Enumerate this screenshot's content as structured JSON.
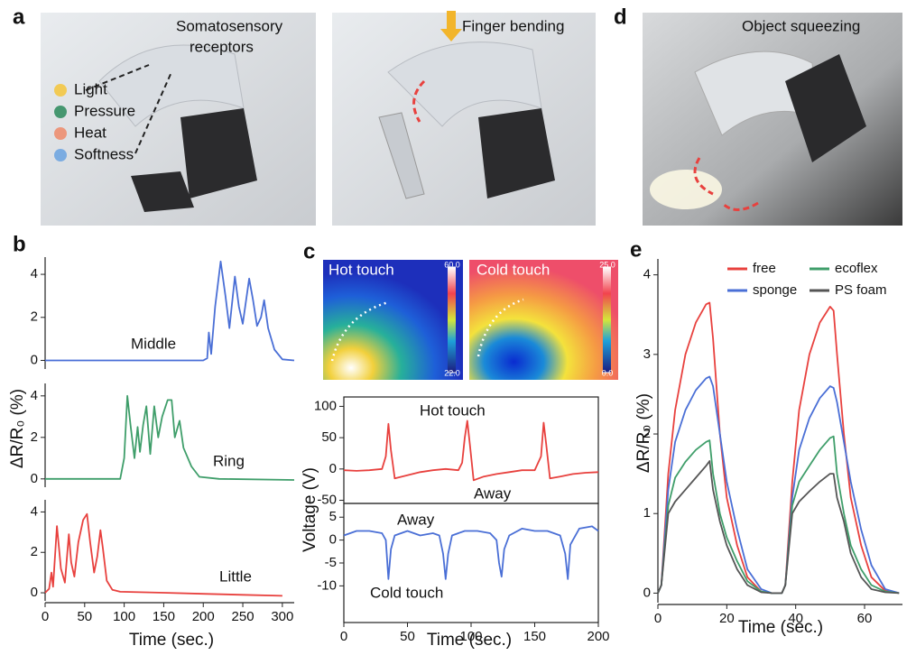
{
  "panel_labels": [
    "a",
    "b",
    "c",
    "d",
    "e"
  ],
  "photos": {
    "receptor_title": [
      "Somatosensory",
      "receptors"
    ],
    "receptors": [
      "Light",
      "Pressure",
      "Heat",
      "Softness"
    ],
    "finger_bending": "Finger bending",
    "object_squeezing": "Object squeezing"
  },
  "thermal": [
    {
      "label": "Hot touch",
      "scale": [
        {
          "value": 22,
          "label": "22.0"
        },
        {
          "value": 60,
          "label": "60.0"
        }
      ]
    },
    {
      "label": "Cold touch",
      "scale": [
        {
          "value": 0,
          "label": "0.0"
        },
        {
          "value": 25,
          "label": "25.0"
        }
      ]
    }
  ],
  "chart_data": [
    {
      "type": "line",
      "annotations": [
        "Middle"
      ],
      "xlim": [
        0,
        315
      ],
      "ylim": [
        -0.4,
        4.8
      ],
      "yticks": [
        0,
        2,
        4
      ],
      "x": [
        0,
        50,
        100,
        150,
        200,
        205,
        207,
        210,
        215,
        222,
        228,
        233,
        240,
        245,
        250,
        258,
        263,
        268,
        273,
        277,
        282,
        290,
        300,
        315
      ],
      "series": [
        {
          "color": "#4a6fd6",
          "values": [
            0,
            0,
            0,
            0,
            0,
            0.1,
            1.3,
            0.3,
            2.5,
            4.6,
            3.0,
            1.5,
            3.9,
            2.5,
            1.7,
            3.8,
            2.8,
            1.6,
            2.0,
            2.8,
            1.5,
            0.5,
            0.05,
            0
          ]
        }
      ]
    },
    {
      "type": "line",
      "annotations": [
        "Ring"
      ],
      "y_label": "ΔR/R₀ (%)",
      "xlim": [
        0,
        315
      ],
      "ylim": [
        -0.4,
        4.6
      ],
      "yticks": [
        0,
        2,
        4
      ],
      "x": [
        0,
        50,
        95,
        100,
        104,
        108,
        113,
        117,
        120,
        124,
        128,
        133,
        138,
        143,
        148,
        155,
        160,
        164,
        167,
        170,
        175,
        185,
        195,
        220,
        315
      ],
      "series": [
        {
          "color": "#3f9e6a",
          "values": [
            0,
            0,
            0,
            1.0,
            4.0,
            2.6,
            1.0,
            2.5,
            1.3,
            2.6,
            3.5,
            1.2,
            3.5,
            2.0,
            3.0,
            3.8,
            3.8,
            2.0,
            2.4,
            2.8,
            1.5,
            0.6,
            0.1,
            0,
            -0.05
          ]
        }
      ]
    },
    {
      "type": "line",
      "annotations": [
        "Little"
      ],
      "x_label": "Time (sec.)",
      "xlim": [
        0,
        315
      ],
      "xticks": [
        0,
        50,
        100,
        150,
        200,
        250,
        300
      ],
      "ylim": [
        -0.4,
        4.6
      ],
      "yticks": [
        0,
        2,
        4
      ],
      "x": [
        0,
        5,
        8,
        10,
        15,
        20,
        25,
        30,
        33,
        37,
        42,
        48,
        53,
        57,
        62,
        66,
        70,
        73,
        78,
        85,
        95,
        150,
        200,
        250,
        300
      ],
      "series": [
        {
          "color": "#e8413e",
          "values": [
            0,
            0.2,
            1.0,
            0.3,
            3.3,
            1.2,
            0.5,
            2.9,
            1.5,
            0.8,
            2.5,
            3.6,
            3.9,
            2.5,
            1.0,
            1.8,
            3.1,
            2.2,
            0.6,
            0.15,
            0.05,
            0,
            -0.05,
            -0.1,
            -0.15
          ]
        }
      ]
    },
    {
      "type": "line",
      "annotations": [
        "Hot touch",
        "Away"
      ],
      "y_label": "Voltage (V)",
      "xlim": [
        0,
        200
      ],
      "ylim": [
        -55,
        115
      ],
      "yticks": [
        -50,
        0,
        50,
        100
      ],
      "x": [
        0,
        10,
        20,
        30,
        33,
        35,
        37,
        40,
        50,
        60,
        70,
        80,
        90,
        93,
        95,
        97,
        99,
        102,
        110,
        120,
        130,
        140,
        150,
        155,
        157,
        159,
        162,
        170,
        180,
        190,
        200
      ],
      "series": [
        {
          "color": "#e8413e",
          "values": [
            -2,
            -3,
            -2,
            0,
            20,
            72,
            30,
            -15,
            -10,
            -5,
            -2,
            0,
            -2,
            10,
            50,
            77,
            40,
            -18,
            -12,
            -8,
            -5,
            -2,
            -2,
            20,
            74,
            40,
            -15,
            -12,
            -8,
            -6,
            -5
          ]
        }
      ]
    },
    {
      "type": "line",
      "annotations": [
        "Away",
        "Cold touch"
      ],
      "x_label": "Time (sec.)",
      "xlim": [
        0,
        200
      ],
      "xticks": [
        0,
        50,
        100,
        150,
        200
      ],
      "ylim": [
        -18,
        8
      ],
      "yticks": [
        -10,
        -5,
        0,
        5
      ],
      "x": [
        0,
        10,
        20,
        30,
        33,
        35,
        37,
        40,
        50,
        60,
        70,
        75,
        78,
        80,
        82,
        85,
        95,
        105,
        115,
        120,
        122,
        124,
        126,
        130,
        140,
        150,
        160,
        170,
        174,
        176,
        178,
        185,
        195,
        200
      ],
      "series": [
        {
          "color": "#4a6fd6",
          "values": [
            1,
            2,
            2,
            1.5,
            0,
            -8.5,
            -2,
            1,
            2,
            1,
            1.5,
            1,
            -3,
            -8.5,
            -3,
            1,
            2,
            2,
            1.5,
            0,
            -5,
            -8,
            -2,
            1,
            2.5,
            2,
            2,
            1,
            -3,
            -8.5,
            -1,
            2.5,
            3,
            2
          ]
        }
      ]
    },
    {
      "type": "line",
      "y_label": "ΔR/R₀ (%)",
      "x_label": "Time (sec.)",
      "legend": "top-center",
      "xlim": [
        0,
        71
      ],
      "xticks": [
        0,
        20,
        40,
        60
      ],
      "ylim": [
        -0.12,
        4.2
      ],
      "yticks": [
        0,
        1,
        2,
        3,
        4
      ],
      "x": [
        0,
        1,
        3,
        5,
        8,
        11,
        14,
        15,
        16,
        18,
        20,
        23,
        26,
        30,
        33,
        36,
        37,
        39,
        41,
        44,
        47,
        50,
        51,
        52,
        54,
        56,
        59,
        62,
        66,
        70
      ],
      "series": [
        {
          "name": "free",
          "color": "#e8413e",
          "values": [
            0,
            0.1,
            1.5,
            2.3,
            3.0,
            3.4,
            3.63,
            3.65,
            3.2,
            2.0,
            1.2,
            0.6,
            0.2,
            0.02,
            0,
            0,
            0.1,
            1.4,
            2.3,
            3.0,
            3.4,
            3.6,
            3.55,
            3.0,
            2.0,
            1.2,
            0.6,
            0.2,
            0.03,
            0
          ]
        },
        {
          "name": "sponge",
          "color": "#4a6fd6",
          "values": [
            0,
            0.1,
            1.3,
            1.9,
            2.3,
            2.55,
            2.7,
            2.72,
            2.6,
            2.0,
            1.4,
            0.8,
            0.3,
            0.05,
            0,
            0,
            0.1,
            1.2,
            1.8,
            2.2,
            2.45,
            2.6,
            2.58,
            2.4,
            1.9,
            1.4,
            0.8,
            0.35,
            0.05,
            0
          ]
        },
        {
          "name": "ecoflex",
          "color": "#3f9e6a",
          "values": [
            0,
            0.1,
            1.1,
            1.45,
            1.65,
            1.8,
            1.9,
            1.92,
            1.5,
            1.0,
            0.7,
            0.4,
            0.15,
            0.02,
            0,
            0,
            0.1,
            1.1,
            1.4,
            1.6,
            1.8,
            1.95,
            1.97,
            1.5,
            1.0,
            0.6,
            0.3,
            0.1,
            0.02,
            0
          ]
        },
        {
          "name": "PS foam",
          "color": "#555555",
          "values": [
            0,
            0.1,
            1.0,
            1.15,
            1.3,
            1.45,
            1.6,
            1.66,
            1.3,
            0.9,
            0.6,
            0.3,
            0.1,
            0.01,
            0,
            0,
            0.1,
            1.0,
            1.15,
            1.28,
            1.4,
            1.5,
            1.5,
            1.2,
            0.9,
            0.5,
            0.2,
            0.05,
            0.01,
            0
          ]
        }
      ]
    }
  ]
}
